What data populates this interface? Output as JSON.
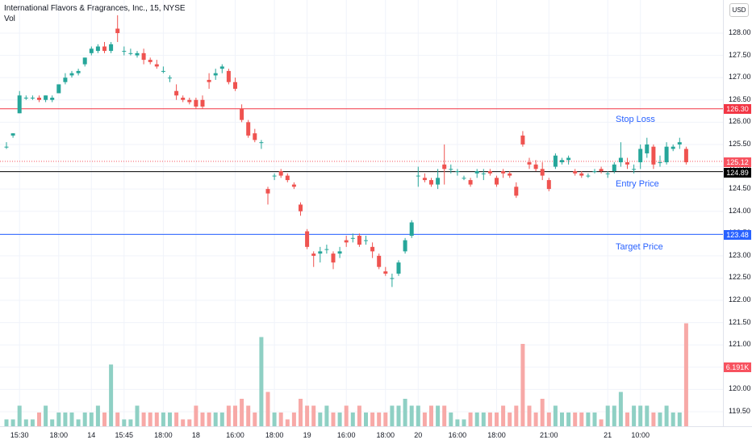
{
  "header": {
    "title": "International Flavors & Fragrances, Inc., 15, NYSE",
    "indicator": "Vol"
  },
  "currency_button": "USD",
  "annotations": {
    "stop_loss": "Stop Loss",
    "entry_price": "Entry Price",
    "target_price": "Target Price"
  },
  "levels": {
    "stop_loss": {
      "label": "126.30",
      "value": 126.3,
      "color": "#f23645"
    },
    "current": {
      "label": "125.12",
      "value": 125.12,
      "color": "#f7525f"
    },
    "entry": {
      "label": "124.89",
      "value": 124.89,
      "color": "#000000"
    },
    "target": {
      "label": "123.48",
      "value": 123.48,
      "color": "#2962ff"
    },
    "volume": {
      "label": "6.191K",
      "color": "#f7525f"
    }
  },
  "chart_data": {
    "type": "candlestick",
    "y_axis": {
      "ticks": [
        "128.00",
        "127.50",
        "127.00",
        "126.50",
        "126.00",
        "125.50",
        "125.00",
        "124.50",
        "124.00",
        "123.50",
        "123.00",
        "122.50",
        "122.00",
        "121.50",
        "121.00",
        "120.50",
        "120.00",
        "119.50"
      ],
      "range": [
        119.2,
        128.3
      ]
    },
    "x_axis": {
      "ticks": [
        {
          "label": "15:30",
          "i": 2
        },
        {
          "label": "18:00",
          "i": 8
        },
        {
          "label": "14",
          "i": 13
        },
        {
          "label": "15:45",
          "i": 18
        },
        {
          "label": "18:00",
          "i": 24
        },
        {
          "label": "18",
          "i": 29
        },
        {
          "label": "16:00",
          "i": 35
        },
        {
          "label": "18:00",
          "i": 41
        },
        {
          "label": "19",
          "i": 46
        },
        {
          "label": "16:00",
          "i": 52
        },
        {
          "label": "18:00",
          "i": 58
        },
        {
          "label": "20",
          "i": 63
        },
        {
          "label": "16:00",
          "i": 69
        },
        {
          "label": "18:00",
          "i": 75
        },
        {
          "label": "21:00",
          "i": 83
        },
        {
          "label": "21",
          "i": 92
        },
        {
          "label": "10:00",
          "i": 97
        }
      ]
    },
    "colors": {
      "up": "#26a69a",
      "down": "#ef5350",
      "vol_up": "#8fd0c4",
      "vol_down": "#f7a9a7"
    },
    "candles": [
      [
        125.45,
        125.55,
        125.4,
        125.45,
        1
      ],
      [
        125.7,
        125.75,
        125.65,
        125.75,
        1
      ],
      [
        126.2,
        126.7,
        126.2,
        126.6,
        3
      ],
      [
        126.55,
        126.6,
        126.5,
        126.55,
        1
      ],
      [
        126.55,
        126.6,
        126.5,
        126.55,
        1
      ],
      [
        126.55,
        126.6,
        126.45,
        126.5,
        2
      ],
      [
        126.5,
        126.6,
        126.45,
        126.6,
        3
      ],
      [
        126.5,
        126.6,
        126.45,
        126.55,
        1
      ],
      [
        126.65,
        126.85,
        126.65,
        126.85,
        2
      ],
      [
        126.9,
        127.1,
        126.85,
        127.0,
        2
      ],
      [
        127.05,
        127.15,
        127.0,
        127.1,
        2
      ],
      [
        127.1,
        127.2,
        127.05,
        127.15,
        1
      ],
      [
        127.3,
        127.45,
        127.25,
        127.45,
        2
      ],
      [
        127.55,
        127.7,
        127.5,
        127.65,
        2
      ],
      [
        127.6,
        127.75,
        127.55,
        127.7,
        3
      ],
      [
        127.7,
        127.8,
        127.55,
        127.6,
        2
      ],
      [
        127.6,
        127.8,
        127.55,
        127.75,
        9
      ],
      [
        128.1,
        128.4,
        127.8,
        128.0,
        2
      ],
      [
        127.6,
        127.7,
        127.5,
        127.6,
        1
      ],
      [
        127.55,
        127.65,
        127.5,
        127.55,
        1
      ],
      [
        127.5,
        127.6,
        127.45,
        127.55,
        3
      ],
      [
        127.55,
        127.65,
        127.3,
        127.4,
        2
      ],
      [
        127.4,
        127.45,
        127.3,
        127.35,
        2
      ],
      [
        127.3,
        127.4,
        127.2,
        127.25,
        2
      ],
      [
        127.15,
        127.25,
        127.1,
        127.15,
        2
      ],
      [
        127.0,
        127.05,
        126.9,
        127.0,
        2
      ],
      [
        126.7,
        126.85,
        126.5,
        126.6,
        2
      ],
      [
        126.55,
        126.6,
        126.45,
        126.5,
        1
      ],
      [
        126.5,
        126.55,
        126.4,
        126.45,
        1
      ],
      [
        126.5,
        126.55,
        126.3,
        126.35,
        3
      ],
      [
        126.5,
        126.6,
        126.3,
        126.35,
        2
      ],
      [
        126.95,
        127.1,
        126.75,
        126.9,
        2
      ],
      [
        127.05,
        127.2,
        126.95,
        127.1,
        2
      ],
      [
        127.2,
        127.3,
        127.1,
        127.25,
        2
      ],
      [
        127.15,
        127.2,
        126.85,
        126.9,
        3
      ],
      [
        126.9,
        127.0,
        126.7,
        126.75,
        3
      ],
      [
        126.3,
        126.4,
        126.0,
        126.05,
        4
      ],
      [
        126.0,
        126.05,
        125.65,
        125.7,
        3
      ],
      [
        125.75,
        125.85,
        125.55,
        125.6,
        2
      ],
      [
        125.55,
        125.6,
        125.4,
        125.55,
        13
      ],
      [
        124.5,
        124.55,
        124.15,
        124.4,
        5
      ],
      [
        124.8,
        124.85,
        124.7,
        124.8,
        2
      ],
      [
        124.9,
        124.95,
        124.75,
        124.8,
        2
      ],
      [
        124.8,
        124.85,
        124.65,
        124.7,
        1
      ],
      [
        124.6,
        124.65,
        124.5,
        124.55,
        2
      ],
      [
        124.15,
        124.2,
        123.9,
        124.0,
        4
      ],
      [
        123.55,
        123.6,
        123.15,
        123.2,
        3
      ],
      [
        123.05,
        123.1,
        122.75,
        123.0,
        3
      ],
      [
        123.05,
        123.2,
        122.85,
        123.1,
        2
      ],
      [
        123.15,
        123.25,
        123.05,
        123.15,
        3
      ],
      [
        123.05,
        123.1,
        122.7,
        122.85,
        2
      ],
      [
        123.05,
        123.2,
        122.95,
        123.1,
        2
      ],
      [
        123.35,
        123.45,
        123.2,
        123.3,
        3
      ],
      [
        123.4,
        123.5,
        123.3,
        123.4,
        2
      ],
      [
        123.45,
        123.5,
        123.2,
        123.25,
        3
      ],
      [
        123.35,
        123.45,
        123.25,
        123.35,
        2
      ],
      [
        123.2,
        123.3,
        122.95,
        123.1,
        2
      ],
      [
        123.0,
        123.05,
        122.7,
        122.75,
        2
      ],
      [
        122.65,
        122.75,
        122.55,
        122.6,
        2
      ],
      [
        122.5,
        122.6,
        122.3,
        122.5,
        3
      ],
      [
        122.6,
        122.9,
        122.55,
        122.85,
        3
      ],
      [
        123.1,
        123.4,
        123.05,
        123.35,
        4
      ],
      [
        123.45,
        123.8,
        123.4,
        123.75,
        3
      ],
      [
        124.8,
        125.0,
        124.55,
        124.8,
        3
      ],
      [
        124.75,
        124.85,
        124.65,
        124.7,
        2
      ],
      [
        124.7,
        124.75,
        124.55,
        124.6,
        3
      ],
      [
        124.6,
        124.95,
        124.5,
        124.75,
        3
      ],
      [
        125.05,
        125.5,
        124.6,
        124.95,
        3
      ],
      [
        124.95,
        125.05,
        124.85,
        124.95,
        2
      ],
      [
        124.9,
        124.95,
        124.8,
        124.9,
        1
      ],
      [
        124.75,
        124.8,
        124.7,
        124.75,
        1
      ],
      [
        124.7,
        124.75,
        124.55,
        124.6,
        2
      ],
      [
        124.85,
        124.95,
        124.75,
        124.9,
        2
      ],
      [
        124.85,
        124.95,
        124.7,
        124.85,
        2
      ],
      [
        124.9,
        124.95,
        124.8,
        124.85,
        2
      ],
      [
        124.75,
        124.8,
        124.55,
        124.6,
        2
      ],
      [
        124.9,
        124.95,
        124.75,
        124.85,
        3
      ],
      [
        124.85,
        124.9,
        124.75,
        124.8,
        2
      ],
      [
        124.55,
        124.65,
        124.3,
        124.35,
        3
      ],
      [
        125.7,
        125.8,
        125.45,
        125.5,
        12
      ],
      [
        125.1,
        125.2,
        124.95,
        125.05,
        3
      ],
      [
        125.05,
        125.15,
        124.9,
        124.95,
        2
      ],
      [
        124.95,
        125.1,
        124.7,
        124.8,
        4
      ],
      [
        124.7,
        124.75,
        124.45,
        124.5,
        2
      ],
      [
        125.0,
        125.3,
        124.95,
        125.25,
        3
      ],
      [
        125.1,
        125.2,
        125.05,
        125.15,
        2
      ],
      [
        125.15,
        125.25,
        125.05,
        125.2,
        2
      ],
      [
        124.9,
        124.95,
        124.8,
        124.85,
        2
      ],
      [
        124.85,
        124.9,
        124.75,
        124.8,
        2
      ],
      [
        124.8,
        124.85,
        124.75,
        124.8,
        2
      ],
      [
        124.9,
        124.95,
        124.85,
        124.9,
        2
      ],
      [
        124.95,
        125.0,
        124.85,
        124.9,
        1
      ],
      [
        124.85,
        124.9,
        124.75,
        124.85,
        3
      ],
      [
        124.9,
        125.1,
        124.85,
        125.05,
        3
      ],
      [
        125.1,
        125.55,
        125.0,
        125.2,
        5
      ],
      [
        125.1,
        125.2,
        124.95,
        125.05,
        2
      ],
      [
        124.95,
        125.05,
        124.85,
        124.95,
        3
      ],
      [
        125.1,
        125.5,
        124.95,
        125.4,
        3
      ],
      [
        125.3,
        125.65,
        125.2,
        125.5,
        3
      ],
      [
        125.45,
        125.5,
        124.95,
        125.05,
        2
      ],
      [
        125.1,
        125.25,
        125.0,
        125.1,
        2
      ],
      [
        125.1,
        125.55,
        125.05,
        125.45,
        3
      ],
      [
        125.4,
        125.5,
        125.35,
        125.45,
        2
      ],
      [
        125.5,
        125.65,
        125.4,
        125.55,
        2
      ],
      [
        125.4,
        125.45,
        125.05,
        125.1,
        15
      ]
    ]
  }
}
